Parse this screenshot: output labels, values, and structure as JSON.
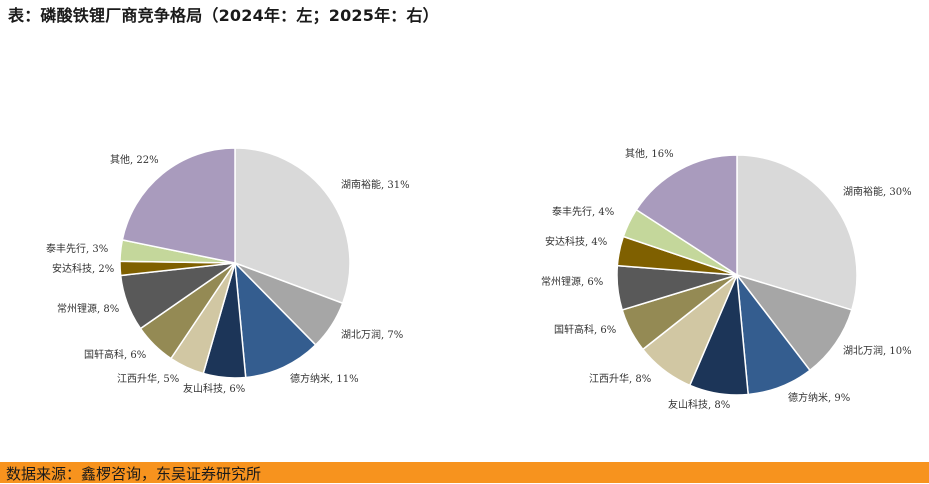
{
  "title": "表：磷酸铁锂厂商竞争格局（2024年：左；2025年：右）",
  "source": "数据来源：鑫椤咨询，东吴证券研究所",
  "chart_data": [
    {
      "type": "pie",
      "title": "2024年",
      "slices": [
        {
          "label": "湖南裕能, 31%",
          "value": 31,
          "color": "#d9d9d9"
        },
        {
          "label": "湖北万润, 7%",
          "value": 7,
          "color": "#a6a6a6"
        },
        {
          "label": "德方纳米, 11%",
          "value": 11,
          "color": "#345d8f"
        },
        {
          "label": "友山科技, 6%",
          "value": 6,
          "color": "#1c3558"
        },
        {
          "label": "江西升华, 5%",
          "value": 5,
          "color": "#d1c7a3"
        },
        {
          "label": "国轩高科, 6%",
          "value": 6,
          "color": "#948a54"
        },
        {
          "label": "常州锂源, 8%",
          "value": 8,
          "color": "#595959"
        },
        {
          "label": "安达科技, 2%",
          "value": 2,
          "color": "#7f6000"
        },
        {
          "label": "泰丰先行, 3%",
          "value": 3,
          "color": "#c4d79b"
        },
        {
          "label": "其他, 22%",
          "value": 22,
          "color": "#a99bbd"
        }
      ]
    },
    {
      "type": "pie",
      "title": "2025年",
      "slices": [
        {
          "label": "湖南裕能, 30%",
          "value": 30,
          "color": "#d9d9d9"
        },
        {
          "label": "湖北万润, 10%",
          "value": 10,
          "color": "#a6a6a6"
        },
        {
          "label": "德方纳米, 9%",
          "value": 9,
          "color": "#345d8f"
        },
        {
          "label": "友山科技, 8%",
          "value": 8,
          "color": "#1c3558"
        },
        {
          "label": "江西升华, 8%",
          "value": 8,
          "color": "#d1c7a3"
        },
        {
          "label": "国轩高科, 6%",
          "value": 6,
          "color": "#948a54"
        },
        {
          "label": "常州锂源, 6%",
          "value": 6,
          "color": "#595959"
        },
        {
          "label": "安达科技, 4%",
          "value": 4,
          "color": "#7f6000"
        },
        {
          "label": "泰丰先行, 4%",
          "value": 4,
          "color": "#c4d79b"
        },
        {
          "label": "其他, 16%",
          "value": 16,
          "color": "#a99bbd"
        }
      ]
    }
  ]
}
